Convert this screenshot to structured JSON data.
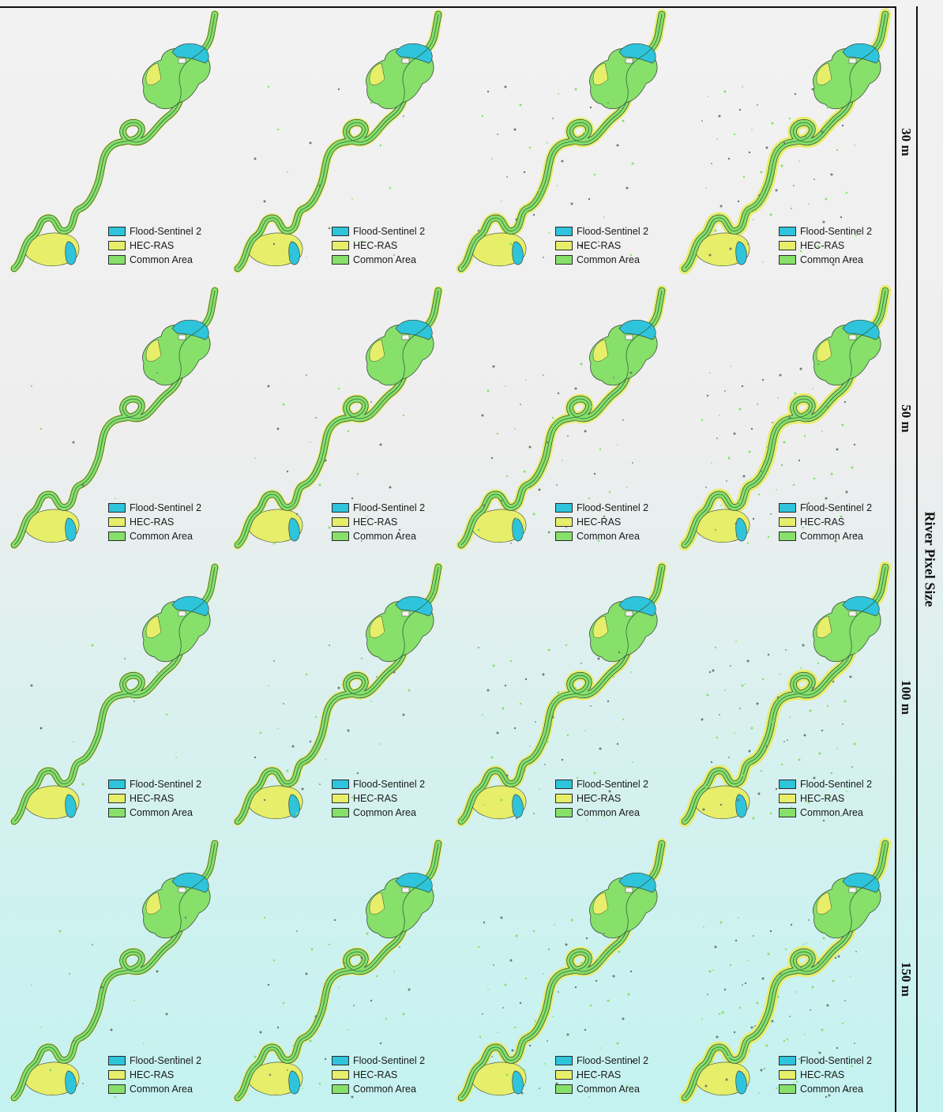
{
  "figure": {
    "axis_title": "River Pixel Size",
    "rows": [
      {
        "label": "30 m"
      },
      {
        "label": "50 m"
      },
      {
        "label": "100 m"
      },
      {
        "label": "150 m"
      }
    ],
    "columns_per_row": 4
  },
  "legend": {
    "items": [
      {
        "label": "Flood-Sentinel 2",
        "color": "#2ec4dc"
      },
      {
        "label": "HEC-RAS",
        "color": "#e6ee6a"
      },
      {
        "label": "Common Area",
        "color": "#86e06a"
      }
    ]
  },
  "colors": {
    "sentinel": "#2ec4dc",
    "hecras": "#e6ee6a",
    "common": "#86e06a",
    "outline": "#3a4a3a"
  },
  "map_icon": "river-flood-map"
}
